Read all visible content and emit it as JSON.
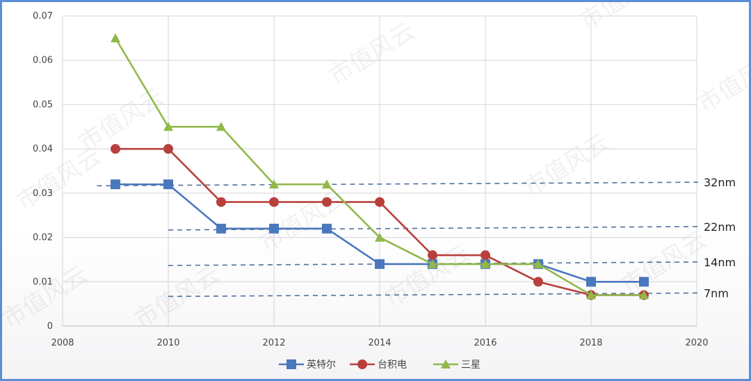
{
  "chart_data": {
    "type": "line",
    "x": [
      2009,
      2010,
      2011,
      2012,
      2013,
      2014,
      2015,
      2016,
      2017,
      2018,
      2019
    ],
    "xlim": [
      2008,
      2020
    ],
    "ylim": [
      0,
      0.07
    ],
    "x_ticks": [
      "2008",
      "2010",
      "2012",
      "2014",
      "2016",
      "2018",
      "2020"
    ],
    "y_ticks": [
      "0",
      "0.01",
      "0.02",
      "0.03",
      "0.04",
      "0.05",
      "0.06",
      "0.07"
    ],
    "grid": true,
    "legend_position": "bottom-center",
    "series": [
      {
        "name": "英特尔",
        "color": "#4a78bd",
        "marker": "square",
        "values": [
          0.032,
          0.032,
          0.022,
          0.022,
          0.022,
          0.014,
          0.014,
          0.014,
          0.014,
          0.01,
          0.01
        ]
      },
      {
        "name": "台积电",
        "color": "#b8403c",
        "marker": "circle",
        "values": [
          0.04,
          0.04,
          0.028,
          0.028,
          0.028,
          0.028,
          0.016,
          0.016,
          0.01,
          0.007,
          0.007
        ]
      },
      {
        "name": "三星",
        "color": "#92b84a",
        "marker": "triangle",
        "values": [
          0.065,
          0.045,
          0.045,
          0.032,
          0.032,
          0.02,
          0.014,
          0.014,
          0.014,
          0.007,
          0.007
        ]
      }
    ],
    "reference_lines": [
      {
        "label": "32nm",
        "value": 0.032,
        "x_start": 2008.65
      },
      {
        "label": "22nm",
        "value": 0.022,
        "x_start": 2010.0
      },
      {
        "label": "14nm",
        "value": 0.014,
        "x_start": 2010.0
      },
      {
        "label": "7nm",
        "value": 0.007,
        "x_start": 2010.0
      }
    ]
  },
  "watermark": "市值风云"
}
